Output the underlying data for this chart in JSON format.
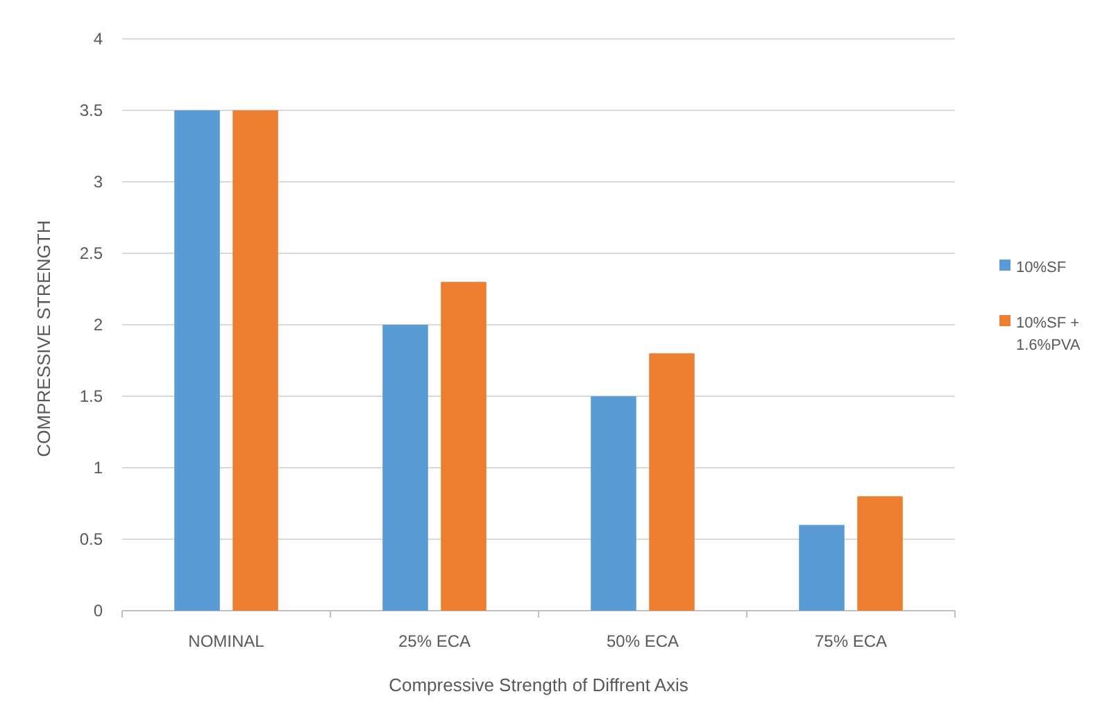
{
  "chart_data": {
    "type": "bar",
    "xlabel": "Compressive Strength of Diffrent Axis",
    "ylabel": "COMPRESSIVE STRENGTH",
    "categories": [
      "NOMINAL",
      "25% ECA",
      "50% ECA",
      "75% ECA"
    ],
    "series": [
      {
        "name": "10%SF",
        "color": "#5b9bd5",
        "values": [
          3.5,
          2,
          1.5,
          0.6
        ]
      },
      {
        "name": "10%SF + 1.6%PVA",
        "color": "#ed7d31",
        "values": [
          3.5,
          2.3,
          1.8,
          0.8
        ]
      }
    ],
    "ylim": [
      0,
      4
    ],
    "yticks": [
      0,
      0.5,
      1,
      1.5,
      2,
      2.5,
      3,
      3.5,
      4
    ],
    "grid": "y",
    "legend": "right"
  }
}
